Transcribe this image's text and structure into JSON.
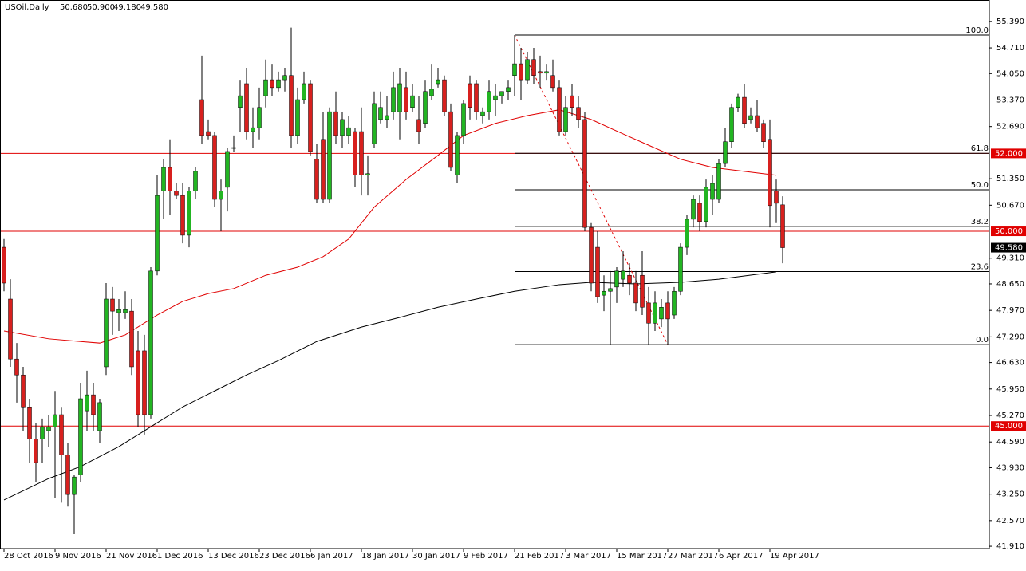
{
  "chart_data": {
    "type": "candlestick",
    "title": "USOil,Daily",
    "ohlc_labels": [
      "50.680",
      "50.900",
      "49.180",
      "49.580"
    ],
    "categories": [
      "28 Oct 2016",
      null,
      null,
      null,
      null,
      null,
      null,
      null,
      "9 Nov 2016",
      null,
      null,
      null,
      null,
      null,
      null,
      null,
      "21 Nov 2016",
      null,
      null,
      null,
      null,
      null,
      null,
      null,
      "1 Dec 2016",
      null,
      null,
      null,
      null,
      null,
      null,
      null,
      "13 Dec 2016",
      null,
      null,
      null,
      null,
      null,
      null,
      null,
      "23 Dec 2016",
      null,
      null,
      null,
      null,
      null,
      null,
      null,
      "6 Jan 2017",
      null,
      null,
      null,
      null,
      null,
      null,
      null,
      "18 Jan 2017",
      null,
      null,
      null,
      null,
      null,
      null,
      null,
      "30 Jan 2017",
      null,
      null,
      null,
      null,
      null,
      null,
      null,
      "9 Feb 2017",
      null,
      null,
      null,
      null,
      null,
      null,
      null,
      "21 Feb 2017",
      null,
      null,
      null,
      null,
      null,
      null,
      null,
      "3 Mar 2017",
      null,
      null,
      null,
      null,
      null,
      null,
      null,
      "15 Mar 2017",
      null,
      null,
      null,
      null,
      null,
      null,
      null,
      "27 Mar 2017",
      null,
      null,
      null,
      null,
      null,
      null,
      null,
      "6 Apr 2017",
      null,
      null,
      null,
      null,
      null,
      null,
      null,
      "19 Apr 2017",
      null,
      null
    ],
    "open": [
      49.59,
      48.26,
      46.72,
      46.31,
      45.49,
      44.67,
      44.67,
      44.88,
      44.98,
      45.29,
      44.26,
      43.24,
      43.75,
      45.39,
      45.8,
      44.88,
      46.52,
      48.26,
      47.91,
      47.91,
      47.95,
      46.93,
      46.93,
      45.29,
      48.98,
      51.03,
      51.64,
      51.03,
      50.92,
      49.9,
      51.03,
      53.38,
      52.56,
      52.46,
      50.82,
      51.13,
      52.13,
      53.18,
      53.79,
      52.56,
      52.66,
      53.48,
      53.89,
      53.69,
      53.89,
      54.0,
      52.46,
      53.38,
      53.79,
      51.85,
      52.36,
      50.82,
      53.07,
      52.46,
      52.46,
      52.56,
      52.56,
      51.44,
      52.25,
      52.87,
      52.87,
      53.07,
      53.07,
      53.69,
      53.18,
      52.87,
      52.77,
      53.48,
      53.79,
      53.89,
      53.07,
      51.44,
      52.46,
      53.79,
      53.79,
      52.97,
      53.07,
      53.38,
      53.48,
      53.59,
      54.0,
      54.3,
      53.89,
      54.41,
      54.1,
      54.06,
      54.0,
      53.69,
      52.56,
      53.48,
      53.18,
      52.87,
      50.1,
      49.59,
      48.36,
      48.46,
      48.57,
      48.77,
      48.87,
      48.67,
      48.87,
      48.16,
      47.64,
      47.75,
      48.16,
      47.85,
      48.46,
      49.59,
      50.31,
      50.72,
      50.25,
      50.82,
      50.82,
      51.74,
      52.3,
      53.18,
      53.44,
      52.87,
      52.97,
      52.77,
      52.36,
      51.03,
      50.68
    ],
    "high": [
      49.8,
      48.77,
      47.13,
      46.52,
      45.7,
      45.08,
      45.19,
      45.29,
      45.9,
      45.49,
      44.57,
      43.75,
      46.11,
      46.42,
      46.11,
      45.7,
      48.67,
      48.57,
      48.26,
      48.46,
      48.26,
      47.44,
      47.34,
      49.08,
      51.44,
      51.85,
      52.36,
      51.23,
      51.23,
      51.13,
      51.64,
      54.51,
      52.87,
      52.56,
      51.33,
      52.15,
      52.46,
      53.89,
      54.2,
      53.18,
      53.69,
      54.41,
      54.3,
      54.1,
      54.2,
      55.23,
      53.69,
      54.1,
      53.89,
      52.25,
      53.07,
      53.18,
      53.59,
      53.07,
      52.97,
      52.66,
      53.18,
      51.95,
      53.59,
      53.59,
      53.48,
      54.1,
      54.2,
      54.1,
      53.79,
      53.48,
      53.89,
      54.3,
      54.2,
      54.0,
      53.28,
      52.56,
      53.38,
      54.0,
      53.89,
      53.18,
      53.89,
      53.79,
      53.59,
      53.89,
      55.04,
      54.71,
      54.61,
      54.71,
      54.51,
      54.3,
      54.41,
      53.89,
      53.48,
      53.79,
      53.48,
      53.07,
      50.21,
      50.0,
      48.87,
      48.98,
      49.08,
      49.49,
      49.18,
      48.98,
      49.49,
      48.57,
      48.46,
      48.26,
      48.46,
      48.57,
      49.69,
      50.41,
      50.92,
      50.92,
      51.33,
      51.44,
      51.85,
      52.66,
      53.28,
      53.53,
      53.79,
      53.18,
      53.38,
      52.87,
      52.87,
      51.33,
      50.9
    ],
    "low": [
      48.46,
      46.52,
      45.6,
      44.88,
      44.06,
      43.55,
      44.06,
      44.47,
      43.14,
      43.03,
      42.93,
      42.22,
      43.55,
      44.88,
      44.88,
      44.57,
      46.31,
      47.34,
      47.44,
      47.75,
      46.31,
      44.98,
      44.78,
      45.19,
      48.87,
      50.31,
      50.41,
      50.82,
      49.69,
      49.59,
      50.82,
      52.25,
      52.36,
      50.62,
      50.0,
      50.51,
      52.05,
      52.56,
      52.36,
      52.15,
      52.36,
      53.18,
      53.48,
      53.59,
      53.59,
      52.15,
      52.25,
      53.28,
      51.95,
      50.72,
      50.72,
      50.72,
      52.25,
      52.15,
      52.25,
      51.13,
      50.92,
      50.92,
      52.15,
      52.77,
      52.66,
      52.87,
      52.36,
      52.87,
      53.07,
      52.25,
      52.66,
      53.38,
      53.69,
      52.97,
      51.54,
      51.23,
      52.25,
      52.87,
      52.87,
      52.77,
      52.87,
      52.97,
      53.28,
      53.38,
      53.48,
      53.38,
      53.79,
      53.79,
      53.69,
      53.89,
      53.59,
      52.46,
      52.46,
      52.97,
      52.66,
      50.0,
      48.46,
      48.16,
      47.95,
      47.09,
      48.16,
      48.57,
      48.36,
      47.95,
      47.85,
      47.09,
      47.44,
      47.54,
      47.09,
      47.75,
      48.36,
      49.39,
      50.1,
      50.0,
      50.1,
      50.41,
      50.72,
      51.64,
      52.15,
      53.07,
      52.66,
      52.77,
      52.56,
      52.15,
      50.1,
      50.21,
      49.18
    ],
    "close": [
      48.67,
      46.72,
      46.31,
      45.49,
      44.67,
      44.06,
      44.98,
      44.98,
      45.29,
      44.26,
      43.24,
      43.69,
      45.7,
      45.8,
      45.29,
      45.6,
      48.26,
      47.95,
      47.99,
      47.99,
      46.52,
      45.29,
      45.29,
      48.98,
      50.92,
      51.64,
      51.03,
      50.92,
      49.9,
      51.03,
      51.54,
      52.46,
      52.46,
      50.82,
      51.03,
      52.05,
      52.15,
      53.48,
      52.56,
      52.66,
      53.18,
      53.89,
      53.69,
      53.89,
      54.0,
      52.46,
      53.38,
      53.79,
      52.05,
      50.82,
      50.82,
      53.07,
      52.46,
      52.87,
      52.66,
      51.44,
      51.44,
      51.48,
      53.28,
      53.18,
      52.97,
      53.69,
      53.79,
      53.07,
      53.48,
      52.56,
      53.59,
      53.65,
      53.89,
      53.07,
      51.64,
      52.46,
      53.28,
      53.18,
      53.07,
      53.07,
      53.59,
      53.48,
      53.59,
      53.69,
      54.3,
      53.89,
      54.41,
      54.0,
      54.06,
      54.1,
      53.69,
      52.56,
      53.18,
      53.18,
      52.87,
      50.1,
      48.67,
      48.32,
      48.46,
      48.53,
      48.98,
      48.98,
      48.67,
      48.16,
      48.05,
      47.64,
      48.16,
      48.05,
      47.75,
      48.46,
      49.59,
      50.31,
      50.82,
      50.25,
      51.13,
      51.23,
      51.74,
      52.3,
      53.18,
      53.44,
      52.77,
      52.97,
      52.66,
      52.3,
      50.66,
      50.72,
      49.58
    ],
    "up_color": "#22b522",
    "down_color": "#d8201e",
    "overlays": [
      {
        "color": "#e00000",
        "x": [
          0,
          7,
          12,
          15,
          19,
          24,
          28,
          32,
          36,
          41,
          46,
          50,
          54,
          58,
          63,
          68,
          72,
          77,
          82,
          87,
          92,
          97,
          101,
          106,
          111,
          116,
          121
        ],
        "values": [
          47.44,
          47.24,
          47.17,
          47.13,
          47.34,
          47.85,
          48.2,
          48.4,
          48.53,
          48.87,
          49.08,
          49.35,
          49.8,
          50.62,
          51.33,
          51.95,
          52.46,
          52.77,
          52.97,
          53.12,
          52.87,
          52.5,
          52.21,
          51.85,
          51.64,
          51.54,
          51.44
        ]
      },
      {
        "color": "#000000",
        "x": [
          0,
          7,
          12,
          18,
          23,
          28,
          33,
          38,
          43,
          49,
          56,
          62,
          68,
          74,
          80,
          87,
          92,
          99,
          106,
          112,
          121
        ],
        "values": [
          43.1,
          43.65,
          43.96,
          44.47,
          44.98,
          45.49,
          45.9,
          46.31,
          46.68,
          47.17,
          47.54,
          47.79,
          48.05,
          48.26,
          48.46,
          48.63,
          48.69,
          48.65,
          48.69,
          48.77,
          48.96
        ]
      }
    ],
    "levels": [
      {
        "value": 52,
        "label": "52.000"
      },
      {
        "value": 50,
        "label": "50.000"
      },
      {
        "value": 45,
        "label": "45.000"
      }
    ],
    "level_color": "#e00000",
    "fibonacci": {
      "high": 55.04,
      "low": 47.09,
      "levels": [
        {
          "value": 100,
          "label": "100.0"
        },
        61.8,
        {
          "value": 50,
          "label": "50.0"
        },
        38.2,
        23.6,
        {
          "value": 0,
          "label": "0.0"
        }
      ]
    },
    "ylim": [
      41.85,
      55.94
    ],
    "yticks": [
      {
        "value": 55.39,
        "label": "55.390"
      },
      {
        "value": 54.71,
        "label": "54.710"
      },
      {
        "value": 54.05,
        "label": "54.050"
      },
      {
        "value": 53.37,
        "label": "53.370"
      },
      {
        "value": 52.69,
        "label": "52.690"
      },
      {
        "value": 51.35,
        "label": "51.350"
      },
      {
        "value": 50.67,
        "label": "50.670"
      },
      {
        "value": 49.31,
        "label": "49.310"
      },
      {
        "value": 48.65,
        "label": "48.650"
      },
      {
        "value": 47.97,
        "label": "47.970"
      },
      {
        "value": 47.29,
        "label": "47.290"
      },
      {
        "value": 46.63,
        "label": "46.630"
      },
      {
        "value": 45.95,
        "label": "45.950"
      },
      {
        "value": 45.27,
        "label": "45.270"
      },
      {
        "value": 44.59,
        "label": "44.590"
      },
      {
        "value": 43.93,
        "label": "43.930"
      },
      {
        "value": 43.25,
        "label": "43.250"
      },
      {
        "value": 42.57,
        "label": "42.570"
      },
      {
        "value": 41.91,
        "label": "41.910"
      }
    ]
  }
}
